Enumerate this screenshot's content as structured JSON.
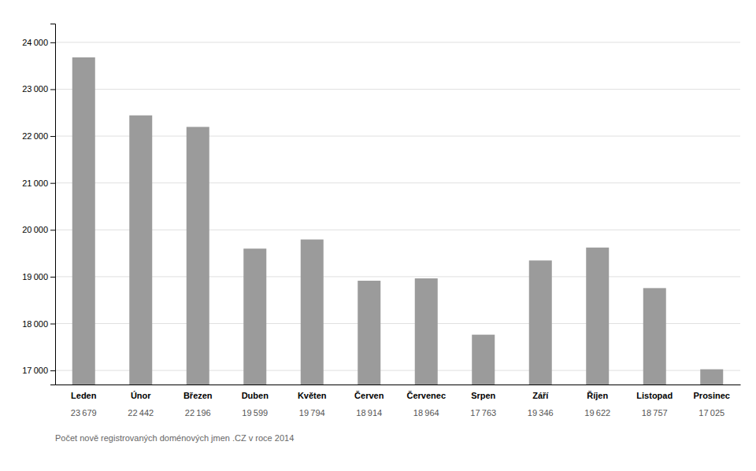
{
  "chart_data": {
    "type": "bar",
    "categories": [
      "Leden",
      "Únor",
      "Březen",
      "Duben",
      "Květen",
      "Červen",
      "Červenec",
      "Srpen",
      "Září",
      "Říjen",
      "Listopad",
      "Prosinec"
    ],
    "values": [
      23679,
      22442,
      22196,
      19599,
      19794,
      18914,
      18964,
      17763,
      19346,
      19622,
      18757,
      17025
    ],
    "value_labels": [
      "23 679",
      "22 442",
      "22 196",
      "19 599",
      "19 794",
      "18 914",
      "18 964",
      "17 763",
      "19 346",
      "19 622",
      "18 757",
      "17 025"
    ],
    "data_labels": true,
    "color": "#9b9b9b",
    "ylim": [
      16700,
      24400
    ],
    "yticks": [
      {
        "value": 17000,
        "label": "17 000"
      },
      {
        "value": 18000,
        "label": "18 000"
      },
      {
        "value": 19000,
        "label": "19 000"
      },
      {
        "value": 20000,
        "label": "20 000"
      },
      {
        "value": 21000,
        "label": "21 000"
      },
      {
        "value": 22000,
        "label": "22 000"
      },
      {
        "value": 23000,
        "label": "23 000"
      },
      {
        "value": 24000,
        "label": "24 000"
      }
    ],
    "grid": true,
    "annotations": [
      "Počet nově registrovaných doménových jmen .CZ v roce 2014"
    ]
  }
}
